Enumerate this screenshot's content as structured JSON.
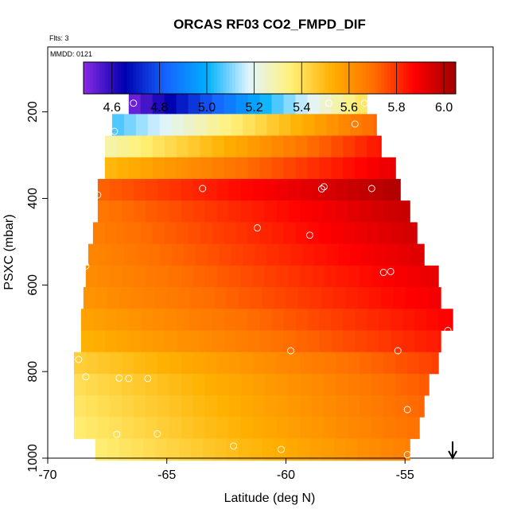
{
  "chart_data": {
    "type": "heatmap",
    "title": "ORCAS RF03 CO2_FMPD_DIF",
    "annotations": {
      "flights": "Flts: 3",
      "date": "MMDD: 0121"
    },
    "xlabel": "Latitude (deg N)",
    "ylabel": "PSXC (mbar)",
    "xlim": [
      -70,
      -51.3
    ],
    "ylim": [
      1000,
      50
    ],
    "y_inverted": true,
    "grid": false,
    "xticks": [
      -70,
      -65,
      -60,
      -55
    ],
    "xtick_labels": [
      "-70",
      "-65",
      "-60",
      "-55"
    ],
    "yticks": [
      200,
      400,
      600,
      800,
      1000
    ],
    "ytick_labels": [
      "200",
      "400",
      "600",
      "800",
      "1000"
    ],
    "colorbar": {
      "min": 4.48,
      "max": 6.05,
      "ticks": [
        4.6,
        4.8,
        5.0,
        5.2,
        5.4,
        5.6,
        5.8,
        6.0
      ],
      "tick_labels": [
        "4.6",
        "4.8",
        "5.0",
        "5.2",
        "5.4",
        "5.6",
        "5.8",
        "6.0"
      ],
      "colors": [
        "#8A2BE2",
        "#0000B0",
        "#1565FF",
        "#00B0FF",
        "#E0F4FF",
        "#FFF27A",
        "#FFB000",
        "#FF7000",
        "#FF0000",
        "#A00000"
      ],
      "tick_color": "#000000"
    },
    "rows": [
      {
        "p": 180,
        "x_start": -66.6,
        "x_end": -56.6,
        "v_start": 4.5,
        "v_end": 5.4
      },
      {
        "p": 230,
        "x_start": -67.3,
        "x_end": -56.2,
        "v_start": 5.05,
        "v_end": 5.72
      },
      {
        "p": 280,
        "x_start": -67.6,
        "x_end": -56.0,
        "v_start": 5.28,
        "v_end": 5.85
      },
      {
        "p": 330,
        "x_start": -67.6,
        "x_end": -55.4,
        "v_start": 5.5,
        "v_end": 5.92
      },
      {
        "p": 380,
        "x_start": -67.9,
        "x_end": -55.2,
        "v_start": 5.72,
        "v_end": 6.02
      },
      {
        "p": 430,
        "x_start": -67.9,
        "x_end": -54.8,
        "v_start": 5.68,
        "v_end": 5.98
      },
      {
        "p": 480,
        "x_start": -68.1,
        "x_end": -54.5,
        "v_start": 5.66,
        "v_end": 5.96
      },
      {
        "p": 530,
        "x_start": -68.3,
        "x_end": -54.2,
        "v_start": 5.64,
        "v_end": 5.94
      },
      {
        "p": 580,
        "x_start": -68.4,
        "x_end": -53.6,
        "v_start": 5.62,
        "v_end": 5.92
      },
      {
        "p": 630,
        "x_start": -68.5,
        "x_end": -53.5,
        "v_start": 5.6,
        "v_end": 5.9
      },
      {
        "p": 680,
        "x_start": -68.6,
        "x_end": -53.0,
        "v_start": 5.56,
        "v_end": 5.88
      },
      {
        "p": 730,
        "x_start": -68.6,
        "x_end": -53.5,
        "v_start": 5.52,
        "v_end": 5.84
      },
      {
        "p": 780,
        "x_start": -68.9,
        "x_end": -53.6,
        "v_start": 5.44,
        "v_end": 5.78
      },
      {
        "p": 830,
        "x_start": -68.9,
        "x_end": -54.0,
        "v_start": 5.4,
        "v_end": 5.74
      },
      {
        "p": 880,
        "x_start": -68.9,
        "x_end": -54.2,
        "v_start": 5.38,
        "v_end": 5.72
      },
      {
        "p": 930,
        "x_start": -68.9,
        "x_end": -54.4,
        "v_start": 5.36,
        "v_end": 5.7
      },
      {
        "p": 980,
        "x_start": -68.0,
        "x_end": -54.8,
        "v_start": 5.36,
        "v_end": 5.66
      }
    ],
    "points": [
      {
        "x": -66.4,
        "y": 180
      },
      {
        "x": -58.2,
        "y": 180
      },
      {
        "x": -56.7,
        "y": 180
      },
      {
        "x": -67.2,
        "y": 245
      },
      {
        "x": -57.1,
        "y": 228
      },
      {
        "x": -67.9,
        "y": 392
      },
      {
        "x": -63.5,
        "y": 377
      },
      {
        "x": -58.5,
        "y": 378
      },
      {
        "x": -58.4,
        "y": 373
      },
      {
        "x": -56.4,
        "y": 377
      },
      {
        "x": -61.2,
        "y": 468
      },
      {
        "x": -59.0,
        "y": 485
      },
      {
        "x": -68.4,
        "y": 556
      },
      {
        "x": -55.9,
        "y": 571
      },
      {
        "x": -55.6,
        "y": 569
      },
      {
        "x": -53.2,
        "y": 705
      },
      {
        "x": -68.7,
        "y": 772
      },
      {
        "x": -59.8,
        "y": 752
      },
      {
        "x": -55.3,
        "y": 752
      },
      {
        "x": -68.4,
        "y": 812
      },
      {
        "x": -67.0,
        "y": 815
      },
      {
        "x": -66.6,
        "y": 816
      },
      {
        "x": -65.8,
        "y": 816
      },
      {
        "x": -54.9,
        "y": 888
      },
      {
        "x": -67.1,
        "y": 945
      },
      {
        "x": -65.4,
        "y": 944
      },
      {
        "x": -62.2,
        "y": 972
      },
      {
        "x": -60.2,
        "y": 980
      },
      {
        "x": -54.9,
        "y": 992
      }
    ],
    "arrow": {
      "x": -53.0,
      "direction": "down"
    }
  }
}
